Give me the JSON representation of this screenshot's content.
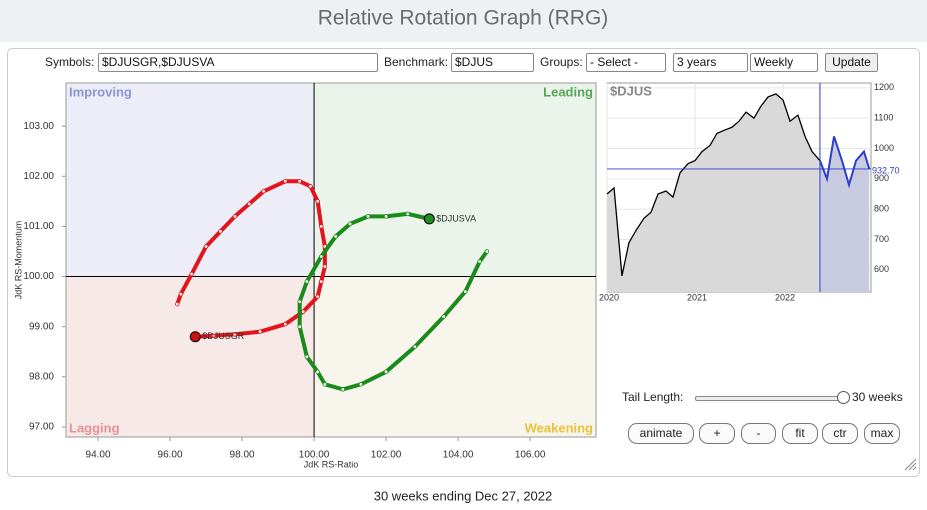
{
  "header": {
    "title": "Relative Rotation Graph (RRG)"
  },
  "controls": {
    "symbols_label": "Symbols:",
    "symbols": "$DJUSGR,$DJUSVA",
    "benchmark_label": "Benchmark:",
    "benchmark": "$DJUS",
    "groups_label": "Groups:",
    "groups": "- Select -",
    "period": "3 years",
    "frequency": "Weekly",
    "update": "Update"
  },
  "rrg": {
    "type": "scatter",
    "x_label": "JdK RS-Ratio",
    "y_label": "JdK RS-Momentum",
    "quadrants": {
      "improving": "Improving",
      "leading": "Leading",
      "lagging": "Lagging",
      "weakening": "Weakening"
    },
    "center_x": 100,
    "center_y": 100,
    "xlim": [
      93.11,
      107.83
    ],
    "ylim": [
      96.8,
      103.86
    ],
    "xticks": [
      {
        "value": 94,
        "label": "94.00"
      },
      {
        "value": 96,
        "label": "96.00"
      },
      {
        "value": 98,
        "label": "98.00"
      },
      {
        "value": 100,
        "label": "100.00"
      },
      {
        "value": 102,
        "label": "102.00"
      },
      {
        "value": 104,
        "label": "104.00"
      },
      {
        "value": 106,
        "label": "106.00"
      }
    ],
    "yticks": [
      {
        "value": 97,
        "label": "97.00"
      },
      {
        "value": 98,
        "label": "98.00"
      },
      {
        "value": 99,
        "label": "99.00"
      },
      {
        "value": 100,
        "label": "100.00"
      },
      {
        "value": 101,
        "label": "101.00"
      },
      {
        "value": 102,
        "label": "102.00"
      },
      {
        "value": 103,
        "label": "103.00"
      }
    ],
    "series": [
      {
        "name": "$DJUSGR",
        "color": "#e3141b",
        "head_color": "#d01010",
        "x": [
          96.2,
          96.3,
          96.6,
          97,
          97.4,
          97.8,
          98.2,
          98.6,
          99.2,
          99.6,
          99.9,
          100.1,
          100.2,
          100.3,
          100.3,
          100.2,
          100.1,
          99.7,
          99.2,
          98.5,
          97.8,
          97.2,
          96.7
        ],
        "y": [
          99.45,
          99.65,
          100.05,
          100.6,
          100.9,
          101.2,
          101.45,
          101.7,
          101.9,
          101.9,
          101.8,
          101.5,
          101.0,
          100.6,
          100.2,
          99.9,
          99.6,
          99.3,
          99.05,
          98.9,
          98.85,
          98.82,
          98.8
        ]
      },
      {
        "name": "$DJUSVA",
        "color": "#1a8a1a",
        "head_color": "#1f8f1f",
        "x": [
          104.8,
          104.6,
          104.2,
          103.6,
          102.8,
          102,
          101.3,
          100.8,
          100.3,
          100.1,
          99.8,
          99.6,
          99.6,
          99.8,
          100.2,
          100.6,
          101,
          101.5,
          102,
          102.6,
          103.2
        ],
        "y": [
          100.5,
          100.3,
          99.7,
          99.2,
          98.6,
          98.1,
          97.85,
          97.75,
          97.85,
          98.1,
          98.4,
          99,
          99.5,
          99.9,
          100.4,
          100.8,
          101.05,
          101.2,
          101.2,
          101.25,
          101.15
        ]
      }
    ]
  },
  "price": {
    "type": "line",
    "title": "$DJUS",
    "color": "#000000",
    "fill": "#d9d9d9",
    "tail_color": "#2a3fcc",
    "tail_fill": "#c9cbe0",
    "tail_start": 2022.42,
    "last_value": 932.7,
    "last_value_label": "932.70",
    "xlim": [
      2020,
      2023
    ],
    "ylim": [
      527,
      1216
    ],
    "xticks": [
      2020,
      2021,
      2022
    ],
    "yticks": [
      600,
      700,
      800,
      900,
      1000,
      1100,
      1200
    ],
    "x": [
      2020,
      2020.08,
      2020.17,
      2020.25,
      2020.33,
      2020.42,
      2020.5,
      2020.58,
      2020.67,
      2020.75,
      2020.83,
      2020.92,
      2021,
      2021.08,
      2021.17,
      2021.25,
      2021.33,
      2021.42,
      2021.5,
      2021.58,
      2021.67,
      2021.75,
      2021.83,
      2021.92,
      2022,
      2022.08,
      2022.17,
      2022.25,
      2022.33,
      2022.42,
      2022.5,
      2022.58,
      2022.67,
      2022.75,
      2022.83,
      2022.92,
      2022.98
    ],
    "values": [
      850,
      870,
      580,
      690,
      730,
      770,
      790,
      850,
      860,
      840,
      920,
      950,
      960,
      990,
      1010,
      1050,
      1060,
      1070,
      1090,
      1120,
      1100,
      1140,
      1170,
      1180,
      1160,
      1090,
      1110,
      1040,
      990,
      960,
      900,
      1040,
      960,
      880,
      960,
      990,
      933
    ]
  },
  "tail": {
    "label": "Tail Length:",
    "value_label": "30 weeks"
  },
  "buttons": [
    "animate",
    "+",
    "-",
    "fit",
    "ctr",
    "max"
  ],
  "footer": "30 weeks ending Dec 27, 2022"
}
